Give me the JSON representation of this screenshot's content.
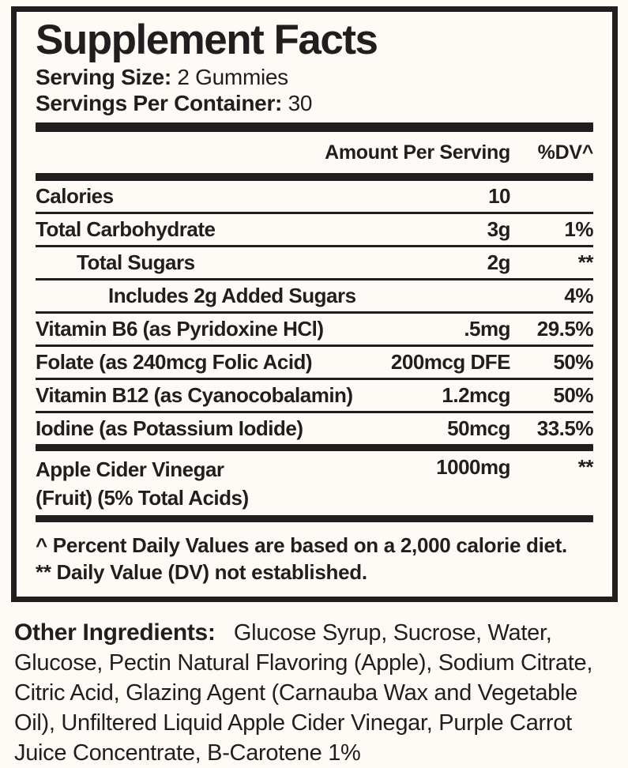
{
  "colors": {
    "paper": "#fcfbf6",
    "ink": "#221e1f"
  },
  "facts": {
    "title": "Supplement Facts",
    "serving_size_label": "Serving Size:",
    "serving_size_value": "2 Gummies",
    "servings_per_container_label": "Servings Per Container:",
    "servings_per_container_value": "30",
    "columns": {
      "amount": "Amount Per Serving",
      "dv": "%DV^"
    },
    "rows": [
      {
        "name": "Calories",
        "amount": "10",
        "dv": ""
      },
      {
        "name": "Total Carbohydrate",
        "amount": "3g",
        "dv": "1%"
      },
      {
        "name": "Total Sugars",
        "amount": "2g",
        "dv": "**"
      },
      {
        "name": "Includes 2g Added Sugars",
        "amount": "",
        "dv": "4%"
      },
      {
        "name": "Vitamin B6 (as Pyridoxine HCl)",
        "amount": ".5mg",
        "dv": "29.5%"
      },
      {
        "name": "Folate (as 240mcg Folic Acid)",
        "amount": "200mcg DFE",
        "dv": "50%"
      },
      {
        "name": "Vitamin B12 (as Cyanocobalamin)",
        "amount": "1.2mcg",
        "dv": "50%"
      },
      {
        "name": "Iodine (as Potassium Iodide)",
        "amount": "50mcg",
        "dv": "33.5%"
      },
      {
        "name": "Apple Cider Vinegar",
        "name_line2": "(Fruit) (5% Total Acids)",
        "amount": "1000mg",
        "dv": "**"
      }
    ],
    "footnotes": [
      "^ Percent Daily Values are based on a 2,000 calorie diet.",
      "** Daily Value (DV) not established."
    ]
  },
  "other_ingredients": {
    "label": "Other Ingredients:",
    "text": "Glucose Syrup, Sucrose, Water, Glucose, Pectin Natural Flavoring (Apple), Sodium Citrate, Citric Acid, Glazing Agent (Carnauba Wax and Vegetable Oil), Unfiltered Liquid Apple Cider Vinegar, Purple Carrot Juice Concentrate, B-Carotene 1%"
  }
}
